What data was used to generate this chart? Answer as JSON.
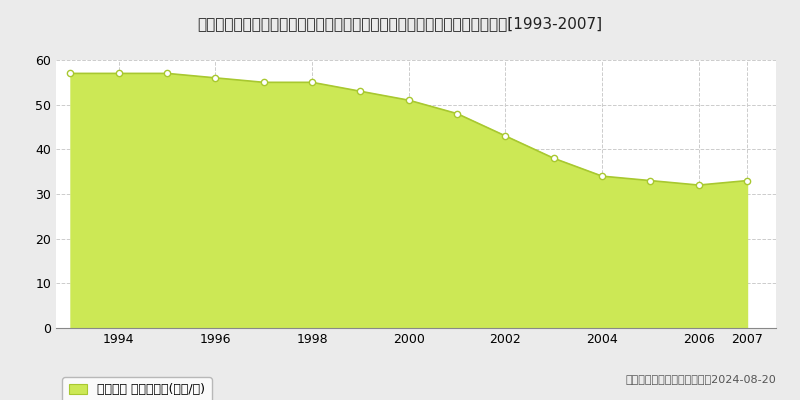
{
  "title": "京都府相楽郡精華町大字北稲八間小字丸山６０番１６　地価公示　地価推移[1993-2007]",
  "years": [
    1993,
    1994,
    1995,
    1996,
    1997,
    1998,
    1999,
    2000,
    2001,
    2002,
    2003,
    2004,
    2005,
    2006,
    2007
  ],
  "values": [
    57,
    57,
    57,
    56,
    55,
    55,
    53,
    51,
    48,
    43,
    38,
    34,
    33,
    32,
    33
  ],
  "line_color": "#a8c830",
  "fill_color": "#cce855",
  "marker_color": "white",
  "marker_edge_color": "#a8c830",
  "background_color": "#ebebeb",
  "plot_bg_color": "#ffffff",
  "grid_color": "#cccccc",
  "ylim": [
    0,
    60
  ],
  "yticks": [
    0,
    10,
    20,
    30,
    40,
    50,
    60
  ],
  "xticks": [
    1994,
    1996,
    1998,
    2000,
    2002,
    2004,
    2006,
    2007
  ],
  "xlim_left": 1992.7,
  "xlim_right": 2007.6,
  "legend_label": "地価公示 平均坪単価(万円/坪)",
  "copyright_text": "（Ｃ）土地価格ドットコム　2024-08-20",
  "title_fontsize": 11,
  "tick_fontsize": 9,
  "legend_fontsize": 9,
  "copyright_fontsize": 8
}
